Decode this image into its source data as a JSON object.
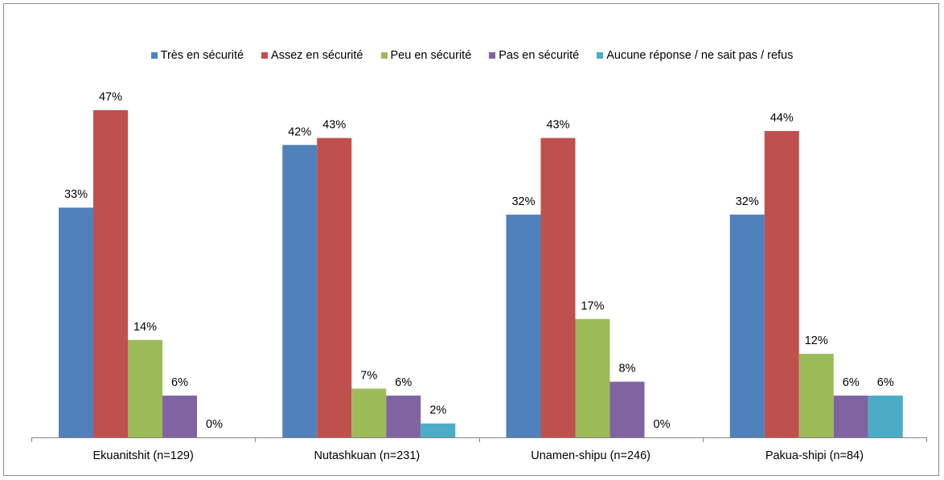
{
  "chart_data": {
    "type": "bar",
    "categories": [
      "Ekuanitshit (n=129)",
      "Nutashkuan (n=231)",
      "Unamen-shipu (n=246)",
      "Pakua-shipi (n=84)"
    ],
    "series": [
      {
        "name": "Très en sécurité",
        "color": "#4f81bd",
        "values": [
          33,
          42,
          32,
          32
        ],
        "labels": [
          "33%",
          "42%",
          "32%",
          "32%"
        ]
      },
      {
        "name": "Assez en sécurité",
        "color": "#c0504d",
        "values": [
          47,
          43,
          43,
          44
        ],
        "labels": [
          "47%",
          "43%",
          "43%",
          "44%"
        ]
      },
      {
        "name": "Peu en sécurité",
        "color": "#9bbb59",
        "values": [
          14,
          7,
          17,
          12
        ],
        "labels": [
          "14%",
          "7%",
          "17%",
          "12%"
        ]
      },
      {
        "name": "Pas en sécurité",
        "color": "#8064a2",
        "values": [
          6,
          6,
          8,
          6
        ],
        "labels": [
          "6%",
          "6%",
          "8%",
          "6%"
        ]
      },
      {
        "name": "Aucune réponse / ne sait pas / refus",
        "color": "#4bacc6",
        "values": [
          0,
          2,
          0,
          6
        ],
        "labels": [
          "0%",
          "2%",
          "0%",
          "6%"
        ]
      }
    ],
    "ylim": [
      0,
      50
    ],
    "legend_position": "top",
    "grid": false
  }
}
